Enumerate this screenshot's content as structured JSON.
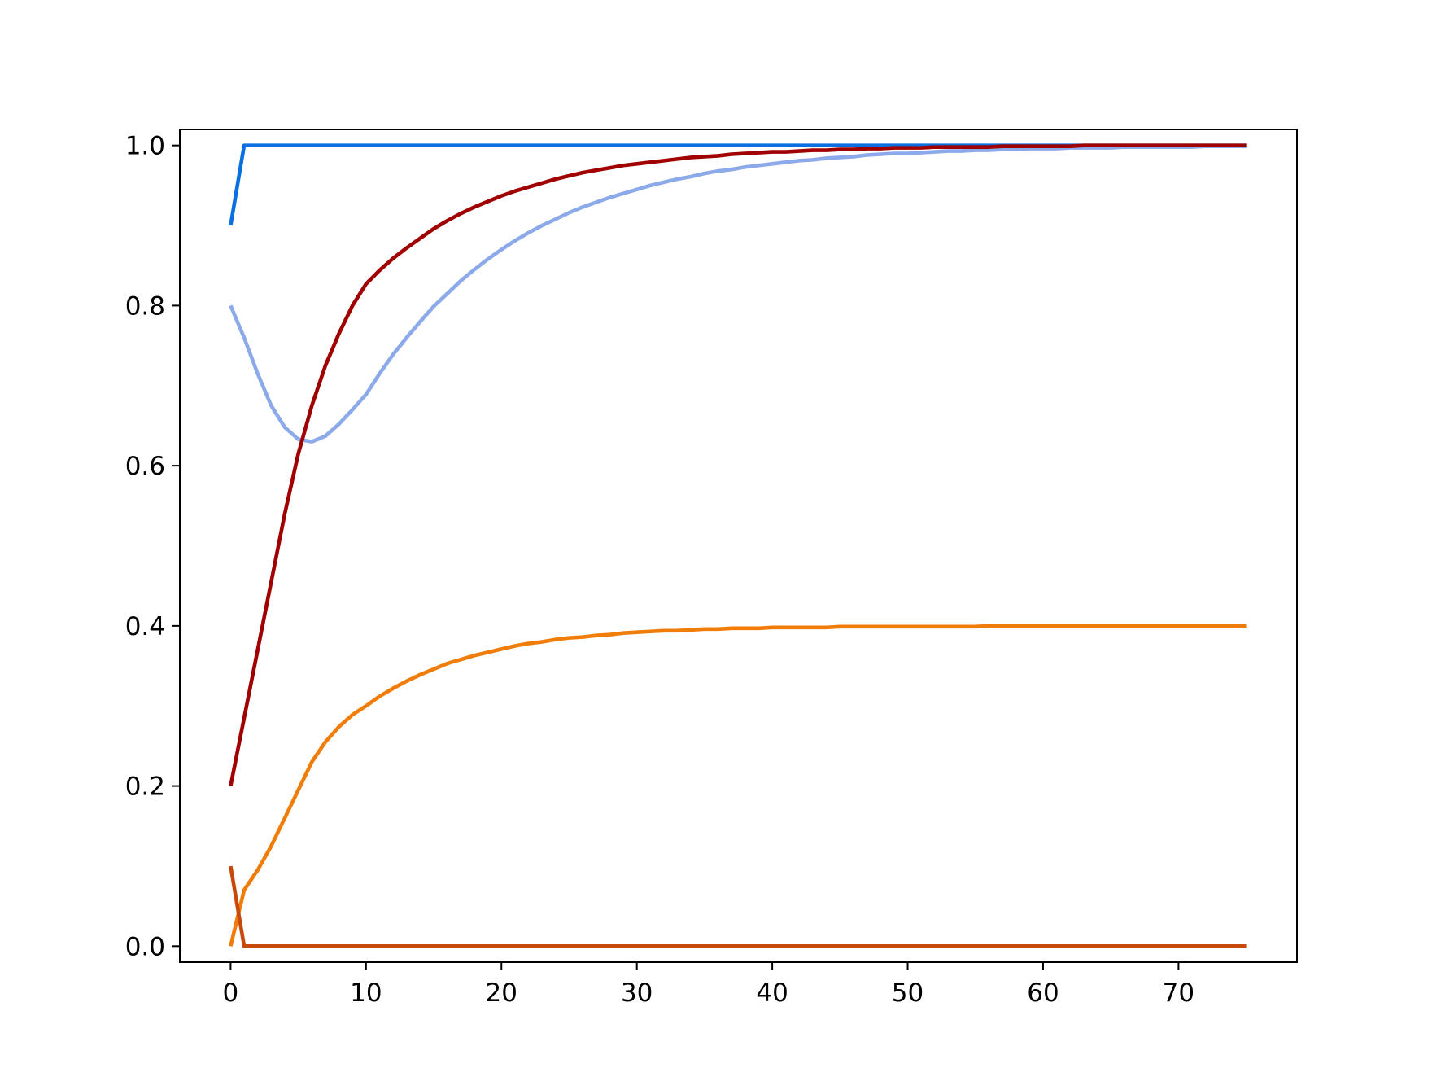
{
  "chart_data": {
    "type": "line",
    "x": [
      0,
      1,
      2,
      3,
      4,
      5,
      6,
      7,
      8,
      9,
      10,
      11,
      12,
      13,
      14,
      15,
      16,
      17,
      18,
      19,
      20,
      21,
      22,
      23,
      24,
      25,
      26,
      27,
      28,
      29,
      30,
      31,
      32,
      33,
      34,
      35,
      36,
      37,
      38,
      39,
      40,
      41,
      42,
      43,
      44,
      45,
      46,
      47,
      48,
      49,
      50,
      51,
      52,
      53,
      54,
      55,
      56,
      57,
      58,
      59,
      60,
      61,
      62,
      63,
      64,
      65,
      66,
      67,
      68,
      69,
      70,
      71,
      72,
      73,
      74,
      75
    ],
    "series": [
      {
        "color": "#0a6fe0",
        "values": [
          0.9,
          1,
          1,
          1,
          1,
          1,
          1,
          1,
          1,
          1,
          1,
          1,
          1,
          1,
          1,
          1,
          1,
          1,
          1,
          1,
          1,
          1,
          1,
          1,
          1,
          1,
          1,
          1,
          1,
          1,
          1,
          1,
          1,
          1,
          1,
          1,
          1,
          1,
          1,
          1,
          1,
          1,
          1,
          1,
          1,
          1,
          1,
          1,
          1,
          1,
          1,
          1,
          1,
          1,
          1,
          1,
          1,
          1,
          1,
          1,
          1,
          1,
          1,
          1,
          1,
          1,
          1,
          1,
          1,
          1,
          1,
          1,
          1,
          1,
          1,
          1
        ]
      },
      {
        "color": "#8caaea",
        "values": [
          0.8,
          0.76,
          0.715,
          0.675,
          0.648,
          0.633,
          0.63,
          0.637,
          0.652,
          0.67,
          0.689,
          0.715,
          0.739,
          0.76,
          0.78,
          0.799,
          0.815,
          0.831,
          0.845,
          0.858,
          0.87,
          0.881,
          0.891,
          0.9,
          0.908,
          0.916,
          0.923,
          0.929,
          0.935,
          0.94,
          0.945,
          0.95,
          0.954,
          0.958,
          0.961,
          0.965,
          0.968,
          0.97,
          0.973,
          0.975,
          0.977,
          0.979,
          0.981,
          0.982,
          0.984,
          0.985,
          0.986,
          0.988,
          0.989,
          0.99,
          0.99,
          0.991,
          0.992,
          0.993,
          0.993,
          0.994,
          0.994,
          0.995,
          0.995,
          0.996,
          0.996,
          0.996,
          0.997,
          0.997,
          0.997,
          0.997,
          0.998,
          0.998,
          0.998,
          0.998,
          0.998,
          0.998,
          0.999,
          0.999,
          0.999,
          0.999
        ]
      },
      {
        "color": "#a00000",
        "values": [
          0.2,
          0.285,
          0.37,
          0.455,
          0.54,
          0.615,
          0.675,
          0.725,
          0.765,
          0.8,
          0.827,
          0.844,
          0.859,
          0.872,
          0.884,
          0.896,
          0.906,
          0.915,
          0.923,
          0.93,
          0.937,
          0.943,
          0.948,
          0.953,
          0.958,
          0.962,
          0.966,
          0.969,
          0.972,
          0.975,
          0.977,
          0.979,
          0.981,
          0.983,
          0.985,
          0.986,
          0.987,
          0.989,
          0.99,
          0.991,
          0.992,
          0.992,
          0.993,
          0.994,
          0.994,
          0.995,
          0.995,
          0.996,
          0.996,
          0.997,
          0.997,
          0.997,
          0.998,
          0.998,
          0.998,
          0.998,
          0.998,
          0.999,
          0.999,
          0.999,
          0.999,
          0.999,
          0.999,
          1,
          1,
          1,
          1,
          1,
          1,
          1,
          1,
          1,
          1,
          1,
          1,
          1
        ]
      },
      {
        "color": "#f07d0a",
        "values": [
          0,
          0.07,
          0.095,
          0.125,
          0.16,
          0.195,
          0.23,
          0.255,
          0.274,
          0.289,
          0.3,
          0.312,
          0.322,
          0.331,
          0.339,
          0.346,
          0.353,
          0.358,
          0.363,
          0.367,
          0.371,
          0.375,
          0.378,
          0.38,
          0.383,
          0.385,
          0.386,
          0.388,
          0.389,
          0.391,
          0.392,
          0.393,
          0.394,
          0.394,
          0.395,
          0.396,
          0.396,
          0.397,
          0.397,
          0.397,
          0.398,
          0.398,
          0.398,
          0.398,
          0.398,
          0.399,
          0.399,
          0.399,
          0.399,
          0.399,
          0.399,
          0.399,
          0.399,
          0.399,
          0.399,
          0.399,
          0.4,
          0.4,
          0.4,
          0.4,
          0.4,
          0.4,
          0.4,
          0.4,
          0.4,
          0.4,
          0.4,
          0.4,
          0.4,
          0.4,
          0.4,
          0.4,
          0.4,
          0.4,
          0.4,
          0.4
        ]
      },
      {
        "color": "#c84a0a",
        "values": [
          0.1,
          0,
          0,
          0,
          0,
          0,
          0,
          0,
          0,
          0,
          0,
          0,
          0,
          0,
          0,
          0,
          0,
          0,
          0,
          0,
          0,
          0,
          0,
          0,
          0,
          0,
          0,
          0,
          0,
          0,
          0,
          0,
          0,
          0,
          0,
          0,
          0,
          0,
          0,
          0,
          0,
          0,
          0,
          0,
          0,
          0,
          0,
          0,
          0,
          0,
          0,
          0,
          0,
          0,
          0,
          0,
          0,
          0,
          0,
          0,
          0,
          0,
          0,
          0,
          0,
          0,
          0,
          0,
          0,
          0,
          0,
          0,
          0,
          0,
          0,
          0
        ]
      }
    ],
    "xlim": [
      -3.75,
      78.75
    ],
    "xticks": [
      0,
      10,
      20,
      30,
      40,
      50,
      60,
      70
    ],
    "ylim": [
      -0.02,
      1.02
    ],
    "yticks": [
      {
        "value": 0,
        "label": "0.0"
      },
      {
        "value": 0.2,
        "label": "0.2"
      },
      {
        "value": 0.4,
        "label": "0.4"
      },
      {
        "value": 0.6,
        "label": "0.6"
      },
      {
        "value": 0.8,
        "label": "0.8"
      },
      {
        "value": 1,
        "label": "1.0"
      }
    ]
  }
}
